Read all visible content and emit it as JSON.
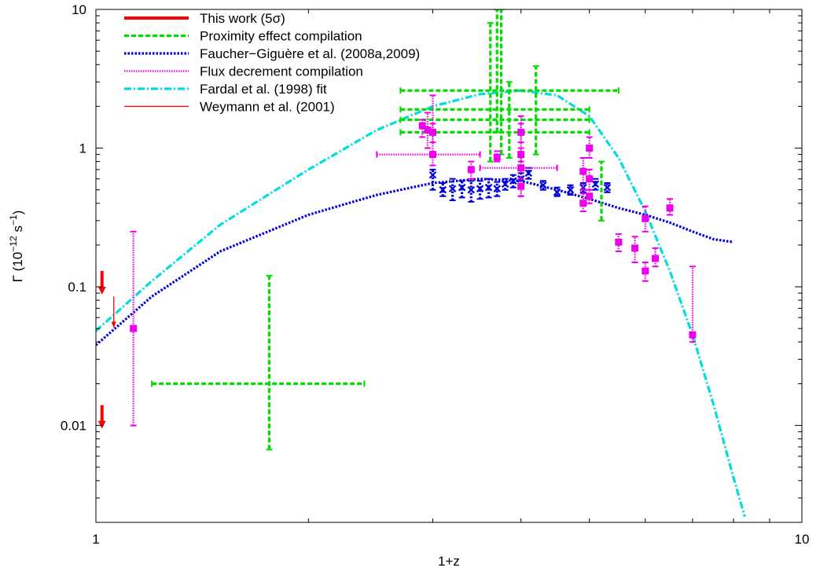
{
  "chart_data": {
    "type": "scatter",
    "title": "",
    "xlabel": "1+z",
    "ylabel": "Γ (10^-12 s^-1)",
    "ylabel_parts": {
      "symbol": "Γ (10",
      "exp1": "−12",
      "mid": " s",
      "exp2": "−1",
      "end": ")"
    },
    "xscale": "log",
    "yscale": "log",
    "xlim": [
      1,
      10
    ],
    "ylim": [
      0.002,
      10
    ],
    "grid": false,
    "legend_position": "top-left",
    "xticks": [
      {
        "value": 1,
        "label": "1"
      },
      {
        "value": 10,
        "label": "10"
      }
    ],
    "yticks": [
      {
        "value": 0.01,
        "label": "0.01"
      },
      {
        "value": 0.1,
        "label": "0.1"
      },
      {
        "value": 1,
        "label": "1"
      },
      {
        "value": 10,
        "label": "10"
      }
    ],
    "series": [
      {
        "name": "This work (5σ)",
        "color": "#ff0000",
        "style": "upper-limit-arrow-thick",
        "points": [
          {
            "x": 1.02,
            "y": 0.13
          },
          {
            "x": 1.02,
            "y": 0.014
          }
        ]
      },
      {
        "name": "Proximity effect compilation",
        "color": "#00dd00",
        "style": "dashed-errorbars",
        "points": [
          {
            "x": 1.76,
            "y": 0.02,
            "xerr": [
              1.2,
              2.4
            ],
            "yerr": [
              0.0067,
              0.12
            ]
          },
          {
            "x": 3.7,
            "y": 2.6,
            "xerr": [
              2.7,
              5.5
            ],
            "yerr": [
              1.3,
              10
            ]
          },
          {
            "x": 3.7,
            "y": 1.9,
            "xerr": [
              2.7,
              5.0
            ]
          },
          {
            "x": 3.7,
            "y": 1.6,
            "xerr": [
              2.7,
              5.0
            ]
          },
          {
            "x": 3.7,
            "y": 1.3,
            "xerr": [
              2.7,
              5.0
            ]
          },
          {
            "x": 3.62,
            "y": 2.6,
            "yerr": [
              0.8,
              8.0
            ]
          },
          {
            "x": 3.75,
            "y": 2.6,
            "yerr": [
              0.9,
              10
            ]
          },
          {
            "x": 3.85,
            "y": 2.0,
            "yerr": [
              0.85,
              3.0
            ]
          },
          {
            "x": 4.2,
            "y": 2.5,
            "yerr": [
              0.9,
              3.9
            ]
          },
          {
            "x": 5.2,
            "y": 0.55,
            "yerr": [
              0.3,
              0.8
            ]
          }
        ]
      },
      {
        "name": "Faucher−Giguère et al. (2008a,2009)",
        "color": "#0000dd",
        "style": "dotted-errorbars",
        "points": [
          {
            "x": 3.0,
            "y": 0.64,
            "yerr": [
              0.5,
              0.7
            ]
          },
          {
            "x": 3.1,
            "y": 0.5,
            "yerr": [
              0.45,
              0.56
            ]
          },
          {
            "x": 3.2,
            "y": 0.51,
            "yerr": [
              0.42,
              0.6
            ]
          },
          {
            "x": 3.3,
            "y": 0.52,
            "yerr": [
              0.44,
              0.58
            ]
          },
          {
            "x": 3.4,
            "y": 0.5,
            "yerr": [
              0.41,
              0.58
            ]
          },
          {
            "x": 3.5,
            "y": 0.51,
            "yerr": [
              0.43,
              0.58
            ]
          },
          {
            "x": 3.6,
            "y": 0.52,
            "yerr": [
              0.44,
              0.6
            ]
          },
          {
            "x": 3.7,
            "y": 0.51,
            "yerr": [
              0.45,
              0.57
            ]
          },
          {
            "x": 3.8,
            "y": 0.55,
            "yerr": [
              0.5,
              0.6
            ]
          },
          {
            "x": 3.9,
            "y": 0.58,
            "yerr": [
              0.52,
              0.64
            ]
          },
          {
            "x": 4.0,
            "y": 0.6,
            "yerr": [
              0.54,
              0.66
            ]
          },
          {
            "x": 4.1,
            "y": 0.66,
            "yerr": [
              0.6,
              0.72
            ]
          },
          {
            "x": 4.3,
            "y": 0.54,
            "yerr": [
              0.5,
              0.58
            ]
          },
          {
            "x": 4.5,
            "y": 0.48,
            "yerr": [
              0.45,
              0.52
            ]
          },
          {
            "x": 4.7,
            "y": 0.5,
            "yerr": [
              0.46,
              0.54
            ]
          },
          {
            "x": 4.9,
            "y": 0.52,
            "yerr": [
              0.48,
              0.56
            ]
          },
          {
            "x": 5.1,
            "y": 0.55,
            "yerr": [
              0.5,
              0.6
            ]
          },
          {
            "x": 5.3,
            "y": 0.52,
            "yerr": [
              0.48,
              0.56
            ]
          }
        ]
      },
      {
        "name": "Flux decrement compilation",
        "color": "#ee00ee",
        "style": "dotted-errorbars-filled",
        "points": [
          {
            "x": 1.13,
            "y": 0.05,
            "yerr": [
              0.01,
              0.25
            ]
          },
          {
            "x": 2.9,
            "y": 1.45,
            "yerr": [
              1.2,
              1.6
            ]
          },
          {
            "x": 2.95,
            "y": 1.35,
            "yerr": [
              1.0,
              1.8
            ]
          },
          {
            "x": 3.0,
            "y": 0.9,
            "xerr": [
              2.5,
              3.5
            ],
            "yerr": [
              0.75,
              2.4
            ]
          },
          {
            "x": 3.0,
            "y": 1.3,
            "yerr": [
              1.1,
              1.5
            ]
          },
          {
            "x": 3.4,
            "y": 0.7,
            "yerr": [
              0.6,
              0.8
            ]
          },
          {
            "x": 3.7,
            "y": 0.86,
            "yerr": [
              0.8,
              0.95
            ]
          },
          {
            "x": 4.0,
            "y": 0.72,
            "xerr": [
              3.5,
              4.5
            ],
            "yerr": [
              0.45,
              1.7
            ]
          },
          {
            "x": 4.0,
            "y": 1.3,
            "yerr": [
              1.1,
              1.5
            ]
          },
          {
            "x": 4.0,
            "y": 0.9,
            "yerr": [
              0.8,
              1.0
            ]
          },
          {
            "x": 4.0,
            "y": 0.53,
            "yerr": [
              0.45,
              0.6
            ]
          },
          {
            "x": 4.9,
            "y": 0.68,
            "yerr": [
              0.5,
              0.85
            ]
          },
          {
            "x": 4.9,
            "y": 0.4,
            "yerr": [
              0.35,
              0.47
            ]
          },
          {
            "x": 5.0,
            "y": 1.0,
            "yerr": [
              0.85,
              1.2
            ]
          },
          {
            "x": 5.0,
            "y": 0.6,
            "yerr": [
              0.5,
              0.7
            ]
          },
          {
            "x": 5.0,
            "y": 0.45,
            "yerr": [
              0.4,
              0.5
            ]
          },
          {
            "x": 5.5,
            "y": 0.21,
            "yerr": [
              0.18,
              0.24
            ]
          },
          {
            "x": 5.8,
            "y": 0.19,
            "yerr": [
              0.15,
              0.23
            ]
          },
          {
            "x": 6.0,
            "y": 0.13,
            "yerr": [
              0.11,
              0.15
            ]
          },
          {
            "x": 6.0,
            "y": 0.31,
            "yerr": [
              0.25,
              0.38
            ]
          },
          {
            "x": 6.2,
            "y": 0.16,
            "yerr": [
              0.14,
              0.19
            ]
          },
          {
            "x": 6.5,
            "y": 0.37,
            "yerr": [
              0.33,
              0.43
            ]
          },
          {
            "x": 7.0,
            "y": 0.045,
            "yerr": [
              0.04,
              0.14
            ]
          }
        ]
      },
      {
        "name": "Fardal et al. (1998) fit",
        "color": "#00dddd",
        "style": "dash-dot-line",
        "curve": [
          [
            1.0,
            0.048
          ],
          [
            1.2,
            0.11
          ],
          [
            1.5,
            0.28
          ],
          [
            2.0,
            0.7
          ],
          [
            2.5,
            1.35
          ],
          [
            3.0,
            2.0
          ],
          [
            3.5,
            2.45
          ],
          [
            4.0,
            2.6
          ],
          [
            4.5,
            2.4
          ],
          [
            5.0,
            1.7
          ],
          [
            5.5,
            0.85
          ],
          [
            6.0,
            0.35
          ],
          [
            6.5,
            0.13
          ],
          [
            7.0,
            0.045
          ],
          [
            7.5,
            0.014
          ],
          [
            8.0,
            0.0042
          ],
          [
            8.3,
            0.0022
          ]
        ]
      },
      {
        "name": "Weymann et al. (2001)",
        "color": "#ff0000",
        "style": "upper-limit-arrow-thin",
        "points": [
          {
            "x": 1.06,
            "y": 0.085
          }
        ]
      },
      {
        "name": "",
        "color": "#0000dd",
        "style": "dotted-line",
        "curve": [
          [
            1.0,
            0.038
          ],
          [
            1.2,
            0.085
          ],
          [
            1.5,
            0.18
          ],
          [
            2.0,
            0.33
          ],
          [
            2.5,
            0.46
          ],
          [
            3.0,
            0.56
          ],
          [
            3.5,
            0.6
          ],
          [
            4.0,
            0.58
          ],
          [
            4.5,
            0.5
          ],
          [
            5.0,
            0.43
          ],
          [
            5.5,
            0.37
          ],
          [
            6.0,
            0.33
          ],
          [
            6.5,
            0.29
          ],
          [
            7.0,
            0.25
          ],
          [
            7.5,
            0.22
          ],
          [
            8.0,
            0.21
          ]
        ]
      }
    ]
  }
}
